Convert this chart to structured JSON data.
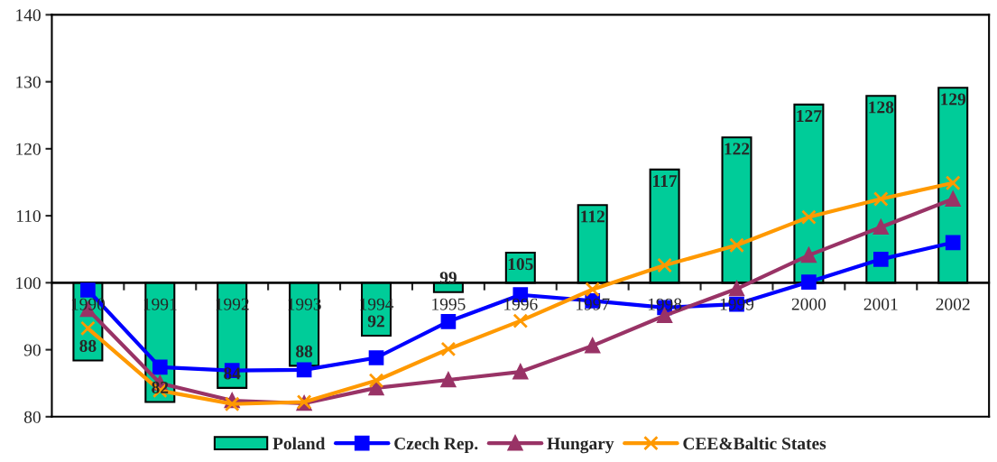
{
  "chart_data": {
    "type": "bar",
    "categories": [
      "1990",
      "1991",
      "1992",
      "1993",
      "1994",
      "1995",
      "1996",
      "1997",
      "1998",
      "1999",
      "2000",
      "2001",
      "2002"
    ],
    "series": [
      {
        "name": "Poland",
        "color": "#00cc99",
        "base": [
          100,
          100,
          100,
          100,
          100,
          100,
          100,
          100,
          100,
          100,
          100,
          100,
          100
        ],
        "values": [
          -11.6,
          -17.8,
          -15.7,
          -12.4,
          -7.9,
          -1.4,
          4.5,
          11.6,
          16.9,
          21.7,
          26.6,
          27.9,
          29.1
        ],
        "value_labels": [
          "88",
          "82",
          "84",
          "88",
          "92",
          "99",
          "105",
          "112",
          "117",
          "122",
          "127",
          "128",
          "129"
        ]
      },
      {
        "name": "Czech Rep.",
        "type": "line",
        "color": "#0000ff",
        "marker": "square",
        "values": [
          98.9,
          87.4,
          86.9,
          87.0,
          88.8,
          94.2,
          98.2,
          97.3,
          96.3,
          96.8,
          100.1,
          103.5,
          106.0
        ]
      },
      {
        "name": "Hungary",
        "type": "line",
        "color": "#993366",
        "marker": "triangle",
        "values": [
          96.0,
          85.0,
          82.4,
          82.0,
          84.3,
          85.5,
          86.7,
          90.6,
          95.1,
          99.1,
          104.1,
          108.3,
          112.5
        ]
      },
      {
        "name": "CEE&Baltic States",
        "type": "line",
        "color": "#ff9900",
        "marker": "cross",
        "values": [
          93.2,
          83.9,
          81.9,
          82.2,
          85.4,
          90.1,
          94.3,
          99.0,
          102.6,
          105.6,
          109.8,
          112.5,
          114.9
        ]
      }
    ],
    "ylim": [
      80,
      140
    ],
    "yticks": [
      80,
      90,
      100,
      110,
      120,
      130,
      140
    ],
    "ref_lines": [
      {
        "axis": "y",
        "value": 100
      }
    ],
    "grid": false,
    "legend": "bottom"
  }
}
